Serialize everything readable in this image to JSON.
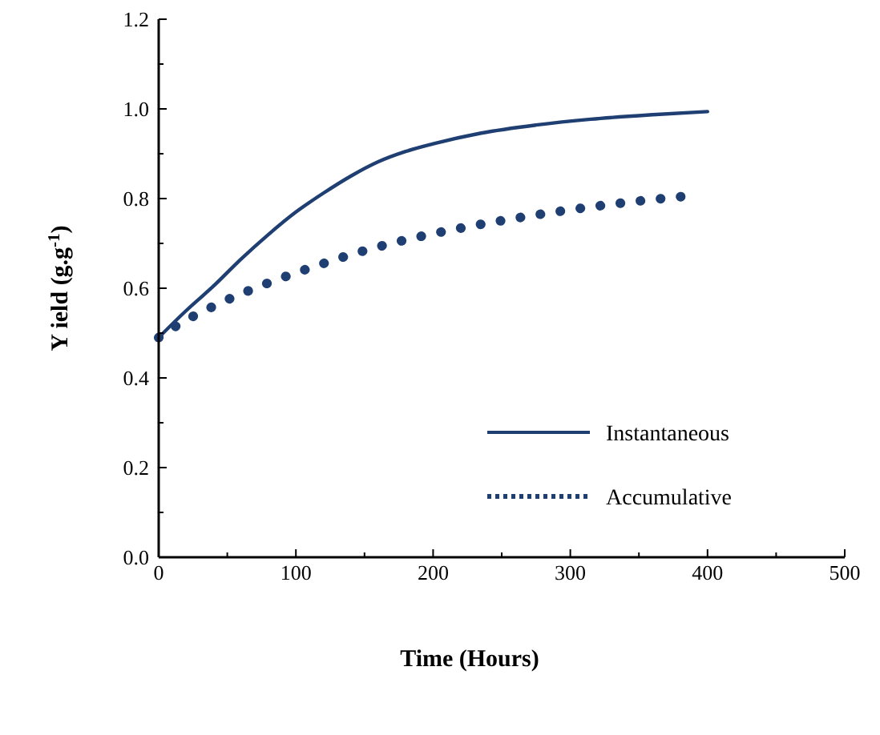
{
  "chart_data": {
    "type": "line",
    "xlabel": "Time (Hours)",
    "ylabel": "Y ield (g.g$^{-1}$)",
    "xlim": [
      0,
      500
    ],
    "xticks": [
      0,
      100,
      200,
      300,
      400,
      500
    ],
    "ylim": [
      0,
      1.2
    ],
    "yticks": [
      {
        "value": 0,
        "label": "0.0"
      },
      {
        "value": 0.2,
        "label": "0.2"
      },
      {
        "value": 0.4,
        "label": "0.4"
      },
      {
        "value": 0.6,
        "label": "0.6"
      },
      {
        "value": 0.8,
        "label": "0.8"
      },
      {
        "value": 1,
        "label": "1.0"
      },
      {
        "value": 1.2,
        "label": "1.2"
      }
    ],
    "grid": false,
    "legend": "bottom right",
    "marker": "none",
    "series": [
      {
        "name": "Instantaneous",
        "color": "#1f3f73",
        "line_style": "solid",
        "x": [
          0,
          20,
          40,
          60,
          80,
          100,
          120,
          140,
          160,
          180,
          200,
          235,
          275,
          315,
          360,
          400
        ],
        "values": [
          0.49,
          0.55,
          0.605,
          0.665,
          0.72,
          0.77,
          0.812,
          0.85,
          0.882,
          0.905,
          0.922,
          0.946,
          0.964,
          0.977,
          0.987,
          0.994
        ]
      },
      {
        "name": "Accumulative",
        "color": "#1f3f73",
        "line_style": "dotted",
        "x": [
          0,
          15,
          40,
          80,
          115,
          150,
          190,
          225,
          260,
          300,
          340,
          390
        ],
        "values": [
          0.49,
          0.52,
          0.56,
          0.612,
          0.65,
          0.684,
          0.715,
          0.737,
          0.756,
          0.775,
          0.791,
          0.807
        ]
      }
    ]
  }
}
